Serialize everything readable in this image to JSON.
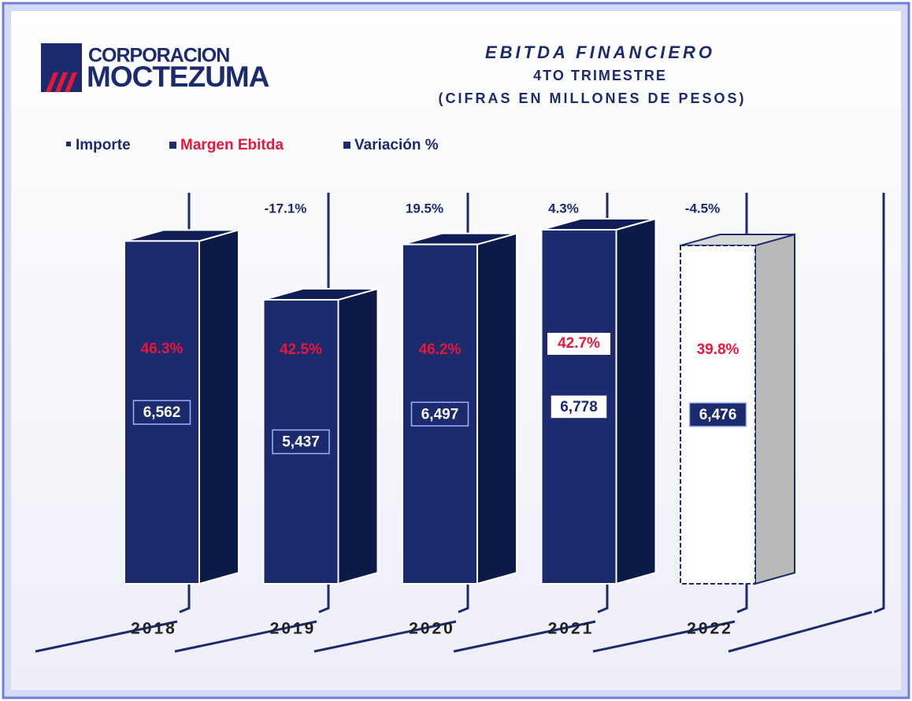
{
  "logo": {
    "line1": "CORPORACION",
    "line2": "MOCTEZUMA"
  },
  "chart_data": {
    "type": "bar3d",
    "title": "EBITDA FINANCIERO",
    "subtitle": [
      "4TO TRIMESTRE",
      "(CIFRAS EN MILLONES DE PESOS)"
    ],
    "categories": [
      "2018",
      "2019",
      "2020",
      "2021",
      "2022"
    ],
    "series": [
      {
        "name": "Importe",
        "color": "#1c2a6e",
        "colors": [
          "#1c2a6e",
          "#1c2a6e",
          "#1c2a6e",
          "#1c2a6e",
          "#ffffff"
        ],
        "values": [
          6562,
          5437,
          6497,
          6778,
          6476
        ],
        "value_labels": [
          "6,562",
          "5,437",
          "6,497",
          "6,778",
          "6,476"
        ]
      },
      {
        "name": "Margen Ebitda",
        "color": "#e8173a",
        "values": [
          46.3,
          42.5,
          46.2,
          42.7,
          39.8
        ],
        "value_labels": [
          "46.3%",
          "42.5%",
          "46.2%",
          "42.7%",
          "39.8%"
        ]
      },
      {
        "name": "Variación %",
        "color": "#1c2a6e",
        "values": [
          null,
          -17.1,
          19.5,
          4.3,
          -4.5
        ],
        "value_labels": [
          null,
          "-17.1%",
          "19.5%",
          "4.3%",
          "-4.5%"
        ]
      }
    ]
  }
}
